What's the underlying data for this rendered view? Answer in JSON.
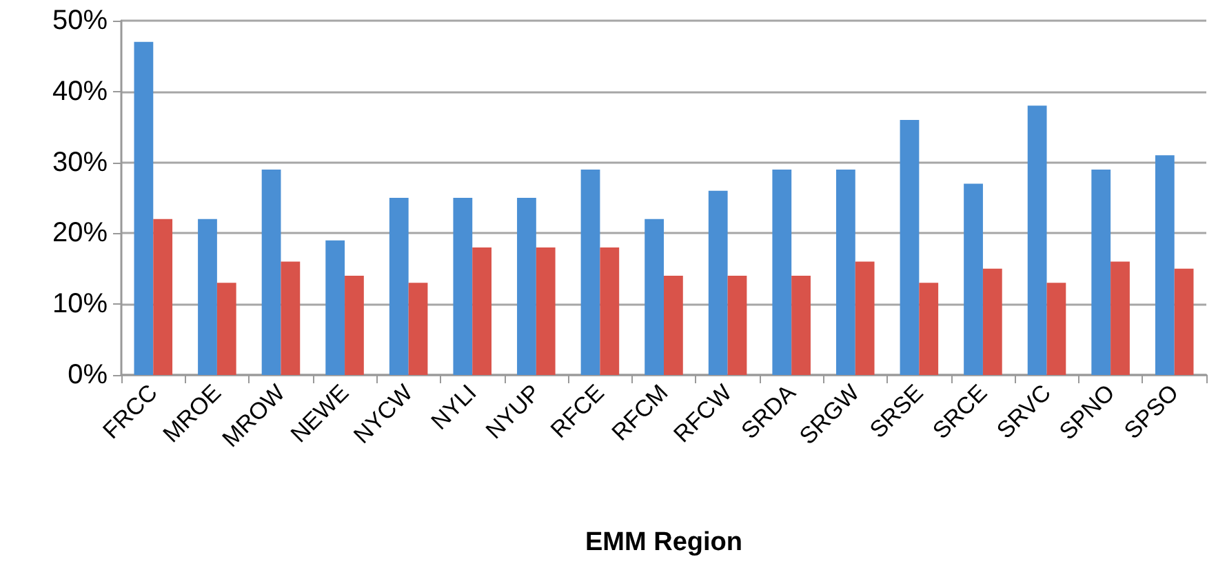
{
  "chart_data": {
    "type": "bar",
    "xlabel": "EMM Region",
    "categories": [
      "FRCC",
      "MROE",
      "MROW",
      "NEWE",
      "NYCW",
      "NYLI",
      "NYUP",
      "RFCE",
      "RFCM",
      "RFCW",
      "SRDA",
      "SRGW",
      "SRSE",
      "SRCE",
      "SRVC",
      "SPNO",
      "SPSO"
    ],
    "series": [
      {
        "color": "#4a8fd4",
        "values": [
          47,
          22,
          29,
          19,
          25,
          25,
          25,
          29,
          22,
          26,
          29,
          29,
          36,
          27,
          38,
          29,
          31
        ]
      },
      {
        "color": "#d9534a",
        "values": [
          22,
          13,
          16,
          14,
          13,
          18,
          18,
          18,
          14,
          14,
          14,
          16,
          13,
          15,
          13,
          16,
          15
        ]
      }
    ],
    "ylim": [
      0,
      50
    ],
    "yticks": [
      {
        "value": 0,
        "label": "0%"
      },
      {
        "value": 10,
        "label": "10%"
      },
      {
        "value": 20,
        "label": "20%"
      },
      {
        "value": 30,
        "label": "30%"
      },
      {
        "value": 40,
        "label": "40%"
      },
      {
        "value": 50,
        "label": "50%"
      }
    ],
    "grid": "y"
  }
}
